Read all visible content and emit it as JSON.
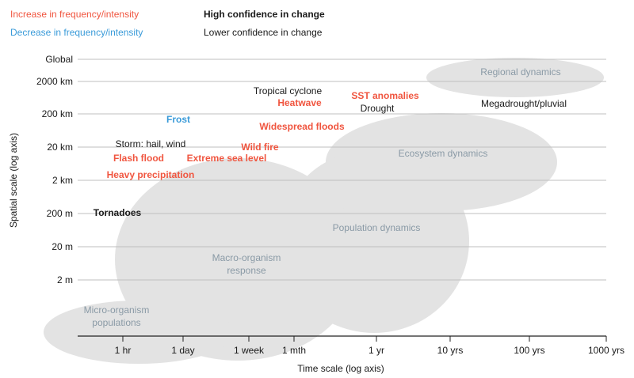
{
  "legend": {
    "increase": "Increase in frequency/intensity",
    "decrease": "Decrease in frequency/intensity",
    "high_confidence": "High confidence in change",
    "lower_confidence": "Lower confidence in change"
  },
  "colors": {
    "increase": "#f0553f",
    "decrease": "#3a9bd9",
    "neutral": "#1a1a1a",
    "ellipse_fill": "#e3e3e3",
    "ellipse_text": "#8a9aa6",
    "grid": "#bfbfbf"
  },
  "axes": {
    "y_label": "Spatial scale (log axis)",
    "x_label": "Time scale (log axis)",
    "y_ticks": [
      "Global",
      "2000 km",
      "200 km",
      "20 km",
      "2 km",
      "200 m",
      "20 m",
      "2 m"
    ],
    "x_ticks": [
      "1 hr",
      "1 day",
      "1 week",
      "1 mth",
      "1 yr",
      "10 yrs",
      "100 yrs",
      "1000 yrs"
    ]
  },
  "regions": [
    {
      "key": "regional",
      "lines": [
        "Regional dynamics"
      ]
    },
    {
      "key": "ecosystem",
      "lines": [
        "Ecosystem dynamics"
      ]
    },
    {
      "key": "population",
      "lines": [
        "Population dynamics"
      ]
    },
    {
      "key": "macro",
      "lines": [
        "Macro-organism",
        "response"
      ]
    },
    {
      "key": "micro",
      "lines": [
        "Micro-organism",
        "populations"
      ]
    }
  ],
  "events": [
    {
      "key": "tropical-cyclone",
      "label": "Tropical cyclone",
      "trend": "neutral",
      "confidence": "lower"
    },
    {
      "key": "heatwave",
      "label": "Heatwave",
      "trend": "increase",
      "confidence": "high"
    },
    {
      "key": "sst-anomalies",
      "label": "SST anomalies",
      "trend": "increase",
      "confidence": "high"
    },
    {
      "key": "drought",
      "label": "Drought",
      "trend": "neutral",
      "confidence": "lower"
    },
    {
      "key": "megadrought",
      "label": "Megadrought/pluvial",
      "trend": "neutral",
      "confidence": "lower"
    },
    {
      "key": "frost",
      "label": "Frost",
      "trend": "decrease",
      "confidence": "high"
    },
    {
      "key": "widespread-floods",
      "label": "Widespread floods",
      "trend": "increase",
      "confidence": "high"
    },
    {
      "key": "storm",
      "label": "Storm: hail, wind",
      "trend": "neutral",
      "confidence": "lower"
    },
    {
      "key": "wild-fire",
      "label": "Wild fire",
      "trend": "increase",
      "confidence": "high"
    },
    {
      "key": "flash-flood",
      "label": "Flash flood",
      "trend": "increase",
      "confidence": "high"
    },
    {
      "key": "extreme-sea-level",
      "label": "Extreme sea level",
      "trend": "increase",
      "confidence": "high"
    },
    {
      "key": "heavy-precipitation",
      "label": "Heavy precipitation",
      "trend": "increase",
      "confidence": "high"
    },
    {
      "key": "tornadoes",
      "label": "Tornadoes",
      "trend": "neutral",
      "confidence": "high"
    }
  ]
}
